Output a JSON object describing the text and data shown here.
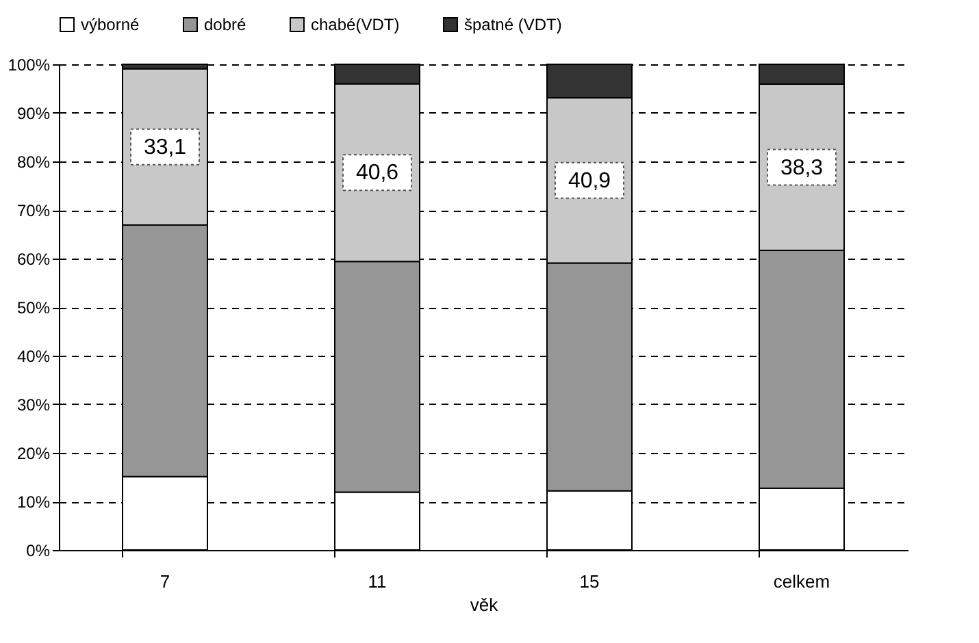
{
  "chart_data": {
    "type": "bar",
    "stacked": true,
    "xlabel": "věk",
    "categories": [
      "7",
      "11",
      "15",
      "celkem"
    ],
    "series": [
      {
        "name": "výborné",
        "color": "#ffffff",
        "values": [
          15.1,
          11.9,
          12.2,
          12.7
        ]
      },
      {
        "name": "dobré",
        "color": "#969696",
        "values": [
          51.8,
          47.5,
          46.9,
          49.0
        ]
      },
      {
        "name": "chabé(VDT)",
        "color": "#c8c8c8",
        "values": [
          32.2,
          36.6,
          34.0,
          34.2
        ]
      },
      {
        "name": "špatné (VDT)",
        "color": "#333333",
        "values": [
          0.9,
          4.0,
          6.9,
          4.1
        ]
      }
    ],
    "ylim": [
      0,
      100
    ],
    "yticks": [
      {
        "value": 0,
        "label": "0%"
      },
      {
        "value": 10,
        "label": "10%"
      },
      {
        "value": 20,
        "label": "20%"
      },
      {
        "value": 30,
        "label": "30%"
      },
      {
        "value": 40,
        "label": "40%"
      },
      {
        "value": 50,
        "label": "50%"
      },
      {
        "value": 60,
        "label": "60%"
      },
      {
        "value": 70,
        "label": "70%"
      },
      {
        "value": 80,
        "label": "80%"
      },
      {
        "value": 90,
        "label": "90%"
      },
      {
        "value": 100,
        "label": "100%"
      }
    ],
    "grid": "y",
    "legend": "top",
    "annotations": [
      "33,1",
      "40,6",
      "40,9",
      "38,3"
    ]
  }
}
